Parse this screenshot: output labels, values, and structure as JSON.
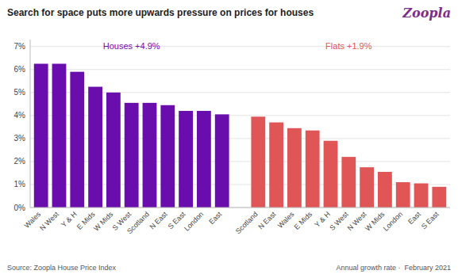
{
  "chart_data": {
    "type": "bar",
    "title": "Search for space puts more upwards pressure on prices for houses",
    "categories": [
      "Wales",
      "N West",
      "Y & H",
      "E Mids",
      "W Mids",
      "S West",
      "Scotland",
      "N East",
      "S East",
      "London",
      "East",
      "Scotland",
      "N East",
      "Wales",
      "E Mids",
      "Y & H",
      "S West",
      "N West",
      "W Mids",
      "London",
      "East",
      "S East"
    ],
    "series": [
      {
        "name": "Houses +4.9%",
        "color": "#6A0DAD",
        "values": [
          6.25,
          6.25,
          5.9,
          5.25,
          5.0,
          4.55,
          4.55,
          4.45,
          4.2,
          4.2,
          4.05,
          null,
          null,
          null,
          null,
          null,
          null,
          null,
          null,
          null,
          null,
          null
        ]
      },
      {
        "name": "Flats +1.9%",
        "color": "#e05555",
        "values": [
          null,
          null,
          null,
          null,
          null,
          null,
          null,
          null,
          null,
          null,
          null,
          3.95,
          3.7,
          3.45,
          3.35,
          2.9,
          2.2,
          1.75,
          1.55,
          1.1,
          1.05,
          0.9
        ]
      }
    ],
    "ylim": [
      0,
      7.3
    ],
    "yticks": [
      {
        "value": 0,
        "label": "0%"
      },
      {
        "value": 1,
        "label": "1%"
      },
      {
        "value": 2,
        "label": "2%"
      },
      {
        "value": 3,
        "label": "3%"
      },
      {
        "value": 4,
        "label": "4%"
      },
      {
        "value": 5,
        "label": "5%"
      },
      {
        "value": 6,
        "label": "6%"
      },
      {
        "value": 7,
        "label": "7%"
      }
    ],
    "grid": true,
    "annotations": [
      {
        "text": "Zoopla",
        "color": "#7B2D8B"
      },
      {
        "text": "Source: Zoopla House Price Index"
      },
      {
        "text": "Annual growth rate ·  February 2021"
      }
    ]
  }
}
